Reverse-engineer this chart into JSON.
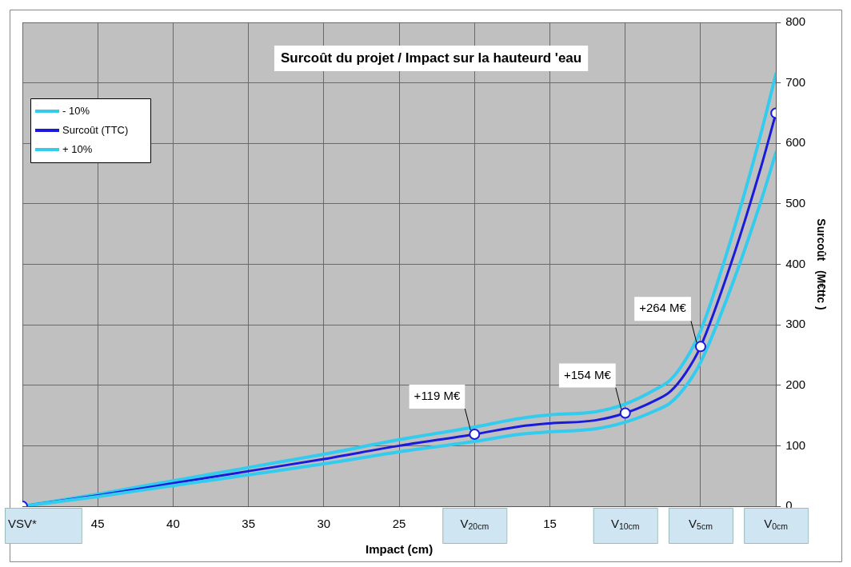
{
  "chart_data": {
    "type": "line",
    "title": "Surcoût du projet / Impact sur la hauteurd 'eau",
    "xlabel": "Impact (cm)",
    "ylabel": "Surcoût   (M€ttc )",
    "x": [
      50,
      45,
      40,
      35,
      30,
      25,
      20,
      17,
      15,
      12,
      10,
      8,
      7,
      6,
      5,
      3,
      1,
      0
    ],
    "series": [
      {
        "name": "- 10%",
        "color": "#33ccee",
        "values": [
          0,
          16,
          34,
          52,
          70,
          90,
          107,
          119,
          123,
          128,
          139,
          158,
          171,
          198,
          238,
          360,
          504,
          585
        ]
      },
      {
        "name": "Surcoût (TTC)",
        "color": "#1a1add",
        "values": [
          0,
          18,
          38,
          58,
          78,
          100,
          119,
          132,
          137,
          142,
          154,
          175,
          190,
          220,
          264,
          400,
          560,
          650
        ]
      },
      {
        "name": "+ 10%",
        "color": "#33ccee",
        "values": [
          0,
          20,
          42,
          64,
          86,
          110,
          131,
          145,
          151,
          156,
          169,
          193,
          209,
          242,
          290,
          440,
          616,
          715
        ]
      },
      {
        "type": "scatter",
        "color": "#1a1add",
        "marker": "circle",
        "x": [
          50,
          20,
          10,
          5,
          0
        ],
        "values": [
          0,
          119,
          154,
          264,
          650
        ]
      }
    ],
    "xlim": [
      50,
      0
    ],
    "xticks": [
      {
        "value": 50,
        "label": "VSV*"
      },
      45,
      40,
      35,
      30,
      25,
      {
        "value": 20,
        "label": "V$_{20cm}$"
      },
      15,
      {
        "value": 10,
        "label": "V$_{10cm}$"
      },
      {
        "value": 5,
        "label": "V$_{5cm}$"
      },
      {
        "value": 0,
        "label": "V$_{0cm}$"
      }
    ],
    "ylim": [
      0,
      800
    ],
    "yticks": [
      0,
      100,
      200,
      300,
      400,
      500,
      600,
      700,
      800
    ],
    "grid": true,
    "legend": "top left",
    "marker": "none",
    "annotations": [
      {
        "text": "+119 M€",
        "x": 20,
        "y": 119
      },
      {
        "text": "+154 M€",
        "x": 10,
        "y": 154
      },
      {
        "text": "+264 M€",
        "x": 5,
        "y": 264
      }
    ]
  }
}
